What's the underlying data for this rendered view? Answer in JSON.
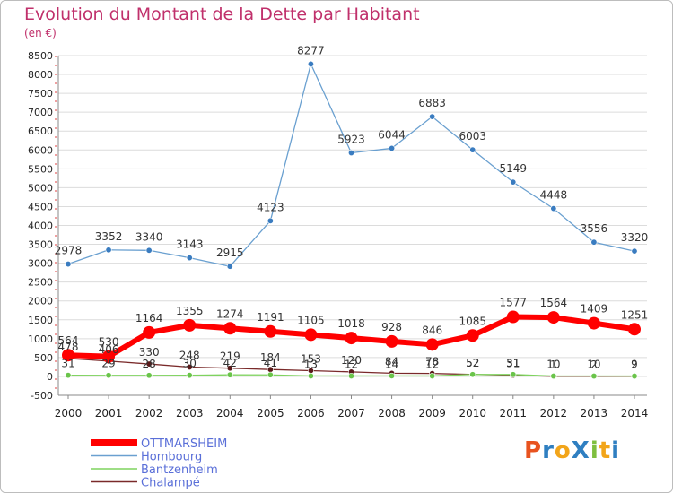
{
  "title": "Evolution du Montant de la Dette par Habitant",
  "subtitle": "(en €)",
  "logo": "ProXiti",
  "colors": {
    "title": "#c0306b",
    "grid": "#dcdcdc",
    "axis_text": "#222222"
  },
  "chart_data": {
    "type": "line",
    "title": "Evolution du Montant de la Dette par Habitant",
    "ylabel": "(en €)",
    "xlabel": "",
    "x": [
      2000,
      2001,
      2002,
      2003,
      2004,
      2005,
      2006,
      2007,
      2008,
      2009,
      2010,
      2011,
      2012,
      2013,
      2014
    ],
    "ylim": [
      -500,
      8500
    ],
    "yticks": [
      -500,
      0,
      500,
      1000,
      1500,
      2000,
      2500,
      3000,
      3500,
      4000,
      4500,
      5000,
      5500,
      6000,
      6500,
      7000,
      7500,
      8000,
      8500
    ],
    "grid": true,
    "legend_position": "bottom-left",
    "series": [
      {
        "name": "OTTMARSHEIM",
        "color": "#ff0000",
        "values": [
          564,
          530,
          1164,
          1355,
          1274,
          1191,
          1105,
          1018,
          928,
          846,
          1085,
          1577,
          1564,
          1409,
          1251
        ]
      },
      {
        "name": "Hombourg",
        "color": "#6aa0d0",
        "values": [
          2978,
          3352,
          3340,
          3143,
          2915,
          4123,
          8277,
          5923,
          6044,
          6883,
          6003,
          5149,
          4448,
          3556,
          3320
        ]
      },
      {
        "name": "Bantzenheim",
        "color": "#7fd35f",
        "values": [
          31,
          29,
          28,
          30,
          42,
          41,
          13,
          12,
          14,
          12,
          52,
          51,
          10,
          10,
          9
        ]
      },
      {
        "name": "Chalampé",
        "color": "#7a2a2a",
        "values": [
          478,
          406,
          330,
          248,
          219,
          184,
          153,
          120,
          84,
          78,
          52,
          31,
          1,
          2,
          2
        ]
      }
    ]
  }
}
